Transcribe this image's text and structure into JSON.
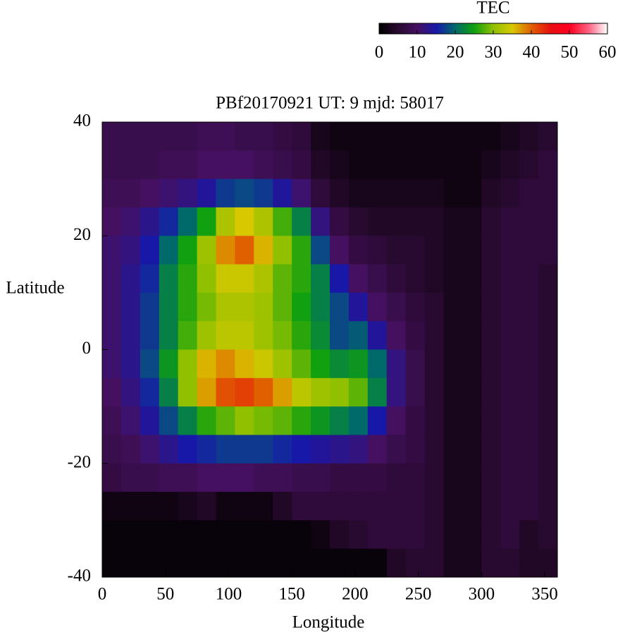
{
  "chart_data": {
    "type": "heatmap",
    "title": "PBf20170921  UT: 9  mjd: 58017",
    "x_label": "Longitude",
    "y_label": "Latitude",
    "colorbar_label": "TEC",
    "x": [
      7.5,
      22.5,
      37.5,
      52.5,
      67.5,
      82.5,
      97.5,
      112.5,
      127.5,
      142.5,
      157.5,
      172.5,
      187.5,
      202.5,
      217.5,
      232.5,
      247.5,
      262.5,
      277.5,
      292.5,
      307.5,
      322.5,
      337.5,
      352.5
    ],
    "y": [
      37.5,
      32.5,
      27.5,
      22.5,
      17.5,
      12.5,
      7.5,
      2.5,
      -2.5,
      -7.5,
      -12.5,
      -17.5,
      -22.5,
      -27.5,
      -32.5,
      -37.5
    ],
    "z": [
      [
        8,
        8,
        8,
        8,
        8,
        9,
        9,
        8,
        8,
        7,
        6,
        3,
        2,
        2,
        2,
        2,
        2,
        2,
        2,
        2,
        2,
        3,
        4,
        5
      ],
      [
        8,
        8,
        8,
        9,
        9,
        10,
        10,
        10,
        9,
        8,
        7,
        4,
        3,
        2,
        2,
        2,
        2,
        2,
        2,
        2,
        3,
        4,
        5,
        6
      ],
      [
        9,
        9,
        10,
        11,
        12,
        14,
        17,
        18,
        17,
        14,
        11,
        6,
        4,
        3,
        3,
        3,
        3,
        3,
        2,
        2,
        4,
        5,
        6,
        6
      ],
      [
        10,
        11,
        13,
        16,
        20,
        25,
        32,
        35,
        32,
        27,
        22,
        12,
        7,
        5,
        4,
        4,
        4,
        4,
        3,
        3,
        5,
        6,
        6,
        6
      ],
      [
        11,
        12,
        15,
        20,
        25,
        31,
        38,
        40,
        36,
        30,
        26,
        18,
        10,
        7,
        6,
        5,
        5,
        4,
        3,
        3,
        5,
        6,
        6,
        6
      ],
      [
        11,
        13,
        16,
        22,
        26,
        30,
        34,
        34,
        32,
        28,
        26,
        22,
        15,
        10,
        8,
        6,
        5,
        4,
        3,
        3,
        5,
        6,
        6,
        5
      ],
      [
        11,
        13,
        17,
        22,
        26,
        29,
        32,
        32,
        31,
        28,
        25,
        22,
        18,
        14,
        10,
        8,
        6,
        5,
        3,
        3,
        5,
        6,
        6,
        5
      ],
      [
        11,
        13,
        17,
        22,
        27,
        31,
        33,
        33,
        31,
        29,
        26,
        23,
        18,
        19,
        14,
        10,
        7,
        5,
        3,
        3,
        5,
        6,
        6,
        5
      ],
      [
        11,
        13,
        18,
        24,
        30,
        36,
        38,
        36,
        34,
        31,
        28,
        25,
        23,
        24,
        20,
        12,
        8,
        5,
        3,
        3,
        5,
        6,
        6,
        5
      ],
      [
        10,
        12,
        16,
        22,
        30,
        37,
        41,
        42,
        40,
        37,
        33,
        31,
        30,
        28,
        22,
        12,
        8,
        5,
        3,
        3,
        5,
        6,
        6,
        5
      ],
      [
        9,
        11,
        14,
        18,
        22,
        26,
        28,
        30,
        29,
        28,
        26,
        24,
        22,
        20,
        15,
        10,
        7,
        5,
        3,
        3,
        5,
        6,
        6,
        5
      ],
      [
        8,
        9,
        11,
        13,
        15,
        16,
        17,
        17,
        17,
        16,
        15,
        14,
        13,
        12,
        10,
        8,
        7,
        5,
        3,
        3,
        5,
        6,
        6,
        5
      ],
      [
        7,
        8,
        8,
        9,
        9,
        10,
        10,
        10,
        9,
        9,
        8,
        8,
        7,
        7,
        7,
        6,
        6,
        5,
        3,
        3,
        5,
        6,
        6,
        5
      ],
      [
        2,
        2,
        2,
        2,
        3,
        4,
        2,
        2,
        2,
        4,
        6,
        6,
        6,
        6,
        6,
        6,
        6,
        5,
        3,
        3,
        5,
        6,
        6,
        5
      ],
      [
        1,
        1,
        1,
        1,
        1,
        1,
        1,
        1,
        1,
        1,
        1,
        2,
        4,
        5,
        6,
        6,
        6,
        5,
        3,
        3,
        5,
        6,
        4,
        5
      ],
      [
        1,
        1,
        1,
        1,
        1,
        1,
        1,
        1,
        1,
        1,
        1,
        1,
        1,
        1,
        1,
        4,
        5,
        5,
        3,
        3,
        5,
        5,
        4,
        4
      ]
    ],
    "xlim": [
      0,
      360
    ],
    "xticks": [
      0,
      50,
      100,
      150,
      200,
      250,
      300,
      350
    ],
    "ylim": [
      -40,
      40
    ],
    "yticks": [
      -40,
      -20,
      0,
      20,
      40
    ],
    "zlim": [
      0,
      60
    ],
    "zticks": [
      0,
      10,
      20,
      30,
      40,
      50,
      60
    ],
    "colormap": [
      "#000000",
      "#280a30",
      "#451060",
      "#1818a8",
      "#006a6a",
      "#10a010",
      "#90c000",
      "#d8c800",
      "#e06000",
      "#e81010",
      "#ff0020",
      "#ff6080",
      "#ffffff"
    ]
  }
}
